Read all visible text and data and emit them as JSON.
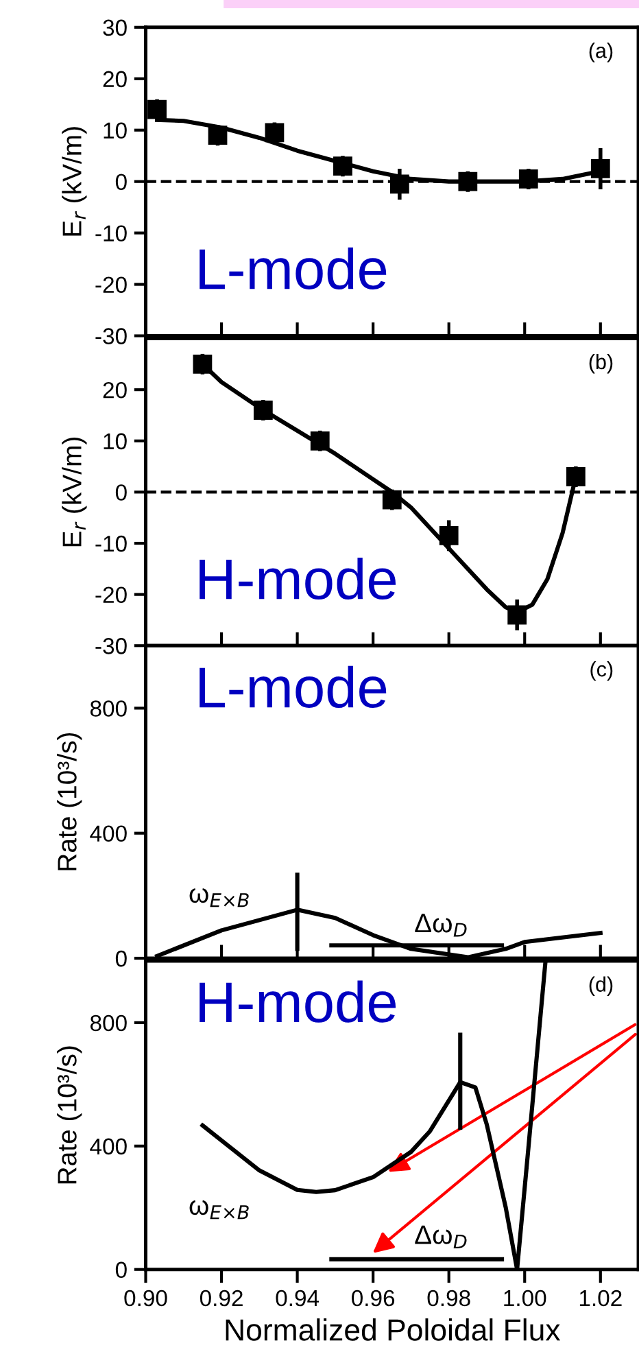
{
  "chart_data": [
    {
      "type": "line",
      "ylabel": "E$_{r}$ (kV/m)",
      "xlim": [
        0.9,
        1.03
      ],
      "ylim": [
        -30,
        30
      ],
      "yticks": [
        -30,
        -20,
        -10,
        0,
        10,
        20,
        30
      ],
      "xticks": [
        0.9,
        0.92,
        0.94,
        0.96,
        0.98,
        1.0,
        1.02
      ],
      "tick_labels": "y",
      "grid": false,
      "annotations": [
        "(a)",
        "L-mode"
      ],
      "ref_lines": [
        {
          "axis": "y",
          "value": 0,
          "line_style": "dashed",
          "color": "#000000"
        }
      ],
      "series": [
        {
          "type": "scatter",
          "marker": "square",
          "color": "#000000",
          "x": [
            0.903,
            0.919,
            0.934,
            0.952,
            0.967,
            0.985,
            1.001,
            1.02
          ],
          "values": [
            14,
            9,
            9.5,
            3,
            -0.5,
            0,
            0.5,
            2.5
          ],
          "errors": [
            2,
            2,
            2,
            2,
            3,
            2,
            2,
            4
          ]
        },
        {
          "marker": "none",
          "color": "#000000",
          "x": [
            0.903,
            0.91,
            0.92,
            0.93,
            0.94,
            0.95,
            0.96,
            0.97,
            0.98,
            0.99,
            1.0,
            1.01,
            1.02
          ],
          "values": [
            12,
            11.8,
            10.5,
            8.5,
            6,
            4,
            2,
            0.5,
            0,
            0,
            0,
            0.5,
            2
          ]
        }
      ]
    },
    {
      "type": "line",
      "ylabel": "E$_{r}$ (kV/m)",
      "xlim": [
        0.9,
        1.03
      ],
      "ylim": [
        -30,
        30
      ],
      "yticks": [
        -30,
        -20,
        -10,
        0,
        10,
        20
      ],
      "xticks": [
        0.9,
        0.92,
        0.94,
        0.96,
        0.98,
        1.0,
        1.02
      ],
      "tick_labels": "y",
      "grid": false,
      "annotations": [
        "(b)",
        "H-mode"
      ],
      "ref_lines": [
        {
          "axis": "y",
          "value": 0,
          "line_style": "dashed",
          "color": "#000000"
        }
      ],
      "series": [
        {
          "type": "scatter",
          "marker": "square",
          "color": "#000000",
          "x": [
            0.915,
            0.931,
            0.946,
            0.965,
            0.98,
            0.998,
            1.0135
          ],
          "values": [
            25,
            16,
            10,
            -1.5,
            -8.5,
            -24,
            3
          ],
          "errors": [
            2,
            2,
            2,
            2,
            3,
            3,
            2
          ]
        },
        {
          "marker": "none",
          "color": "#000000",
          "x": [
            0.915,
            0.92,
            0.93,
            0.94,
            0.95,
            0.96,
            0.965,
            0.97,
            0.98,
            0.99,
            0.995,
            0.998,
            1.002,
            1.006,
            1.01,
            1.0135
          ],
          "values": [
            25,
            21.5,
            16.5,
            12,
            7.5,
            2.5,
            0,
            -3,
            -11,
            -19,
            -22.5,
            -23.5,
            -22,
            -17,
            -8,
            3
          ]
        }
      ]
    },
    {
      "type": "line",
      "ylabel": "Rate (10³/s)",
      "xlim": [
        0.9,
        1.03
      ],
      "ylim": [
        0,
        1000
      ],
      "yticks": [
        0,
        400,
        800
      ],
      "xticks": [
        0.9,
        0.92,
        0.94,
        0.96,
        0.98,
        1.0,
        1.02
      ],
      "tick_labels": "y",
      "grid": false,
      "annotations": [
        "(c)",
        "L-mode",
        "ω$_{E×B}$",
        "Δω$_{D}$"
      ],
      "series": [
        {
          "marker": "none",
          "color": "#000000",
          "x": [
            0.903,
            0.92,
            0.94,
            0.95,
            0.96,
            0.97,
            0.985,
            0.995,
            1.0,
            1.02
          ],
          "values": [
            7,
            89,
            155,
            129,
            74,
            30,
            3,
            30,
            52,
            81
          ]
        },
        {
          "marker": "none",
          "color": "#000000",
          "x": [
            0.94,
            0.94
          ],
          "values": [
            30,
            267
          ]
        },
        {
          "marker": "none",
          "color": "#000000",
          "x": [
            0.949,
            0.994
          ],
          "values": [
            41,
            41
          ]
        }
      ]
    },
    {
      "type": "line",
      "ylabel": "Rate (10³/s)",
      "xlabel": "Normalized Poloidal Flux",
      "xlim": [
        0.9,
        1.03
      ],
      "ylim": [
        0,
        1000
      ],
      "yticks": [
        0,
        400,
        800
      ],
      "xticks": [
        {
          "value": 0.9,
          "label": "0.90"
        },
        0.92,
        0.94,
        0.96,
        0.98,
        {
          "value": 1.0,
          "label": "1.00"
        },
        1.02
      ],
      "grid": false,
      "annotations": [
        "(d)",
        "H-mode",
        "ω$_{E×B}$",
        "Δω$_{D}$"
      ],
      "series": [
        {
          "marker": "none",
          "color": "#000000",
          "x": [
            0.915,
            0.92,
            0.93,
            0.94,
            0.945,
            0.95,
            0.96,
            0.97,
            0.975,
            0.983,
            0.987,
            0.99,
            0.995,
            0.998,
            1.001,
            1.0055
          ],
          "values": [
            467,
            418,
            321,
            258,
            251,
            257,
            299,
            381,
            448,
            607,
            590,
            470,
            201,
            0,
            396,
            1000
          ]
        },
        {
          "marker": "none",
          "color": "#000000",
          "x": [
            0.983,
            0.983
          ],
          "values": [
            460,
            761
          ]
        },
        {
          "marker": "none",
          "color": "#000000",
          "x": [
            0.949,
            0.994
          ],
          "values": [
            33,
            33
          ]
        }
      ]
    }
  ]
}
